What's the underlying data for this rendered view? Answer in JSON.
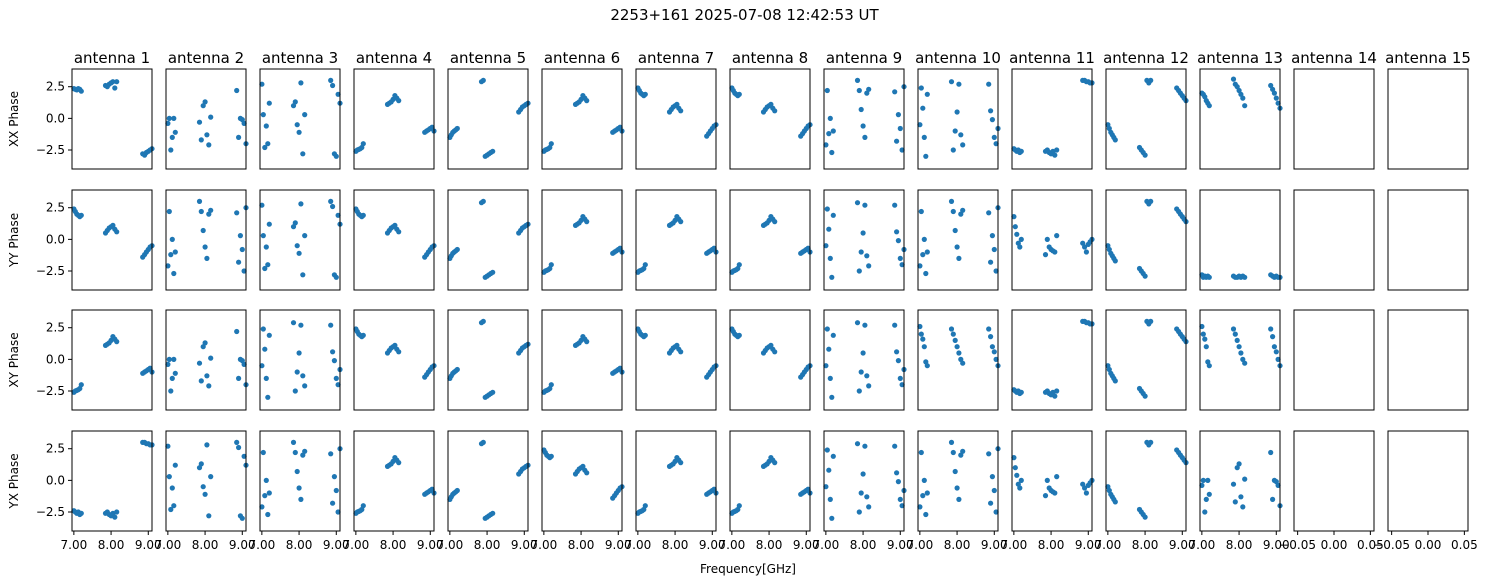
{
  "figure": {
    "suptitle": "2253+161 2025-07-08 12:42:53 UT",
    "xlabel": "Frequency[GHz]"
  },
  "chart_data": {
    "type": "scatter",
    "title": "2253+161 2025-07-08 12:42:53 UT",
    "xlabel": "Frequency[GHz]",
    "marker_color": "#1f77b4",
    "rows": [
      "XX Phase",
      "YY Phase",
      "XY Phase",
      "YX Phase"
    ],
    "columns": [
      "antenna 1",
      "antenna 2",
      "antenna 3",
      "antenna 4",
      "antenna 5",
      "antenna 6",
      "antenna 7",
      "antenna 8",
      "antenna 9",
      "antenna 10",
      "antenna 11",
      "antenna 12",
      "antenna 13",
      "antenna 14",
      "antenna 15"
    ],
    "xlim": [
      6.95,
      9.1
    ],
    "ylim": [
      -4.0,
      3.9
    ],
    "xticks": [
      7.0,
      8.0,
      9.0
    ],
    "xtick_labels": [
      "7.00",
      "8.00",
      "9.00"
    ],
    "yticks": [
      2.5,
      0.0,
      -2.5
    ],
    "ytick_labels": [
      "2.5",
      "0.0",
      "−2.5"
    ],
    "empty_xlim": [
      -0.055,
      0.055
    ],
    "empty_xticks": [
      -0.05,
      0.0,
      0.05
    ],
    "empty_xtick_labels": [
      "−0.05",
      "0.00",
      "0.05"
    ],
    "x_groups": [
      [
        7.0,
        7.04,
        7.08,
        7.12,
        7.16,
        7.2
      ],
      [
        7.85,
        7.9,
        7.95,
        8.0,
        8.05,
        8.1,
        8.15
      ],
      [
        8.85,
        8.9,
        8.95,
        9.0,
        9.05,
        9.1
      ]
    ],
    "patterns": {
      "wrap_line": [
        [
          2.35,
          2.3,
          2.25,
          2.35,
          2.3,
          2.15
        ],
        [
          2.6,
          2.5,
          2.7,
          2.8,
          2.9,
          2.4,
          2.9
        ],
        [
          -2.8,
          -2.9,
          -2.7,
          -2.6,
          -2.5,
          -2.4
        ]
      ],
      "linear_up": [
        [
          -2.6,
          -2.5,
          -2.45,
          -2.4,
          -2.3,
          -2.0
        ],
        [
          1.1,
          1.2,
          1.3,
          1.5,
          1.8,
          1.6,
          1.4
        ],
        [
          -1.1,
          -1.0,
          -0.9,
          -0.8,
          -0.7,
          -1.0
        ]
      ],
      "linear_up_b": [
        [
          -1.5,
          -1.3,
          -1.1,
          -1.0,
          -0.9,
          -0.8
        ],
        [
          2.9,
          3.0,
          -3.0,
          -2.9,
          -2.8,
          -2.7,
          -2.6
        ],
        [
          0.5,
          0.7,
          0.9,
          1.0,
          1.1,
          1.2
        ]
      ],
      "linear_down": [
        [
          2.4,
          2.2,
          2.0,
          1.9,
          1.8,
          1.9
        ],
        [
          0.5,
          0.7,
          0.9,
          1.0,
          1.1,
          0.8,
          0.6
        ],
        [
          -1.4,
          -1.2,
          -1.0,
          -0.8,
          -0.6,
          -0.5
        ]
      ],
      "flat_then_jump": [
        [
          -2.4,
          -2.5,
          -2.6,
          -2.5,
          -2.7,
          -2.6
        ],
        [
          -2.6,
          -2.5,
          -2.7,
          -2.8,
          -2.6,
          -2.9,
          -2.5
        ],
        [
          3.0,
          3.0,
          2.9,
          2.9,
          2.8,
          2.8
        ]
      ],
      "slope_down": [
        [
          -0.5,
          -0.8,
          -1.1,
          -1.3,
          -1.5,
          -1.7
        ],
        [
          -2.3,
          -2.5,
          -2.7,
          -2.9,
          3.0,
          2.8,
          3.0
        ],
        [
          2.4,
          2.2,
          2.0,
          1.8,
          1.6,
          1.4
        ]
      ],
      "steep_down": [
        [
          2.0,
          1.9,
          1.7,
          1.4,
          1.2,
          1.0
        ],
        [
          3.1,
          2.7,
          2.5,
          2.2,
          1.9,
          1.6,
          1.0
        ],
        [
          2.6,
          2.3,
          2.0,
          1.6,
          1.2,
          0.8
        ]
      ],
      "scatter_a": [
        [
          -0.4,
          0.0,
          -2.5,
          -1.5,
          0.0,
          -1.1
        ],
        [
          -0.3,
          -1.7,
          1.0,
          1.3,
          -1.3,
          -2.1,
          0.1
        ],
        [
          2.2,
          -1.5,
          0.0,
          -0.1,
          -0.4,
          -2.0
        ]
      ],
      "scatter_b": [
        [
          2.7,
          0.3,
          -2.3,
          -0.6,
          -2.0,
          1.2
        ],
        [
          1.0,
          1.3,
          -0.5,
          -1.1,
          2.8,
          -2.8,
          0.3
        ],
        [
          3.0,
          2.6,
          -2.8,
          -3.0,
          1.9,
          1.2
        ]
      ],
      "scatter_c": [
        [
          -2.1,
          2.2,
          -1.2,
          0.0,
          -2.7,
          -1.0
        ],
        [
          3.0,
          2.2,
          0.7,
          -0.6,
          -1.5,
          2.0,
          2.3
        ],
        [
          2.1,
          -1.8,
          0.3,
          -0.8,
          -2.5,
          2.5
        ]
      ],
      "scatter_d": [
        [
          -0.5,
          2.4,
          0.8,
          -1.5,
          -3.0,
          1.9
        ],
        [
          2.9,
          -2.5,
          -1.0,
          0.5,
          2.7,
          -1.3,
          -2.1
        ],
        [
          2.7,
          0.6,
          -0.1,
          -1.5,
          -2.0,
          -0.8
        ]
      ],
      "cluster_low": [
        [
          -2.8,
          -3.0,
          -2.9,
          -3.0,
          -2.9,
          -3.0
        ],
        [
          -2.9,
          -3.0,
          -3.0,
          -2.9,
          -3.0,
          -2.9,
          -3.0
        ],
        [
          -2.8,
          -2.9,
          -3.0,
          -2.9,
          -3.0,
          -3.0
        ]
      ],
      "scatter_e": [
        [
          2.6,
          2.0,
          1.6,
          1.0,
          -0.2,
          -0.5
        ],
        [
          2.4,
          2.0,
          1.5,
          1.0,
          0.5,
          0.0,
          -0.3
        ],
        [
          2.4,
          1.8,
          1.0,
          0.6,
          0.0,
          -0.5
        ]
      ],
      "scatter_f": [
        [
          1.8,
          1.0,
          0.4,
          -0.3,
          -0.6,
          0.0
        ],
        [
          -1.2,
          0.0,
          -0.6,
          -0.8,
          -0.9,
          -1.0,
          0.3
        ],
        [
          -0.3,
          -0.6,
          -1.0,
          -0.4,
          -0.2,
          0.0
        ]
      ]
    },
    "grid": [
      [
        "wrap_line",
        "scatter_a",
        "scatter_b",
        "linear_up",
        "linear_up_b",
        "linear_up",
        "linear_down",
        "linear_down",
        "scatter_c",
        "scatter_d",
        "flat_then_jump",
        "slope_down",
        "steep_down",
        null,
        null
      ],
      [
        "linear_down",
        "scatter_c",
        "scatter_b",
        "linear_down",
        "linear_up_b",
        "linear_up",
        "linear_up",
        "linear_up",
        "scatter_d",
        "scatter_c",
        "scatter_f",
        "slope_down",
        "cluster_low",
        null,
        null
      ],
      [
        "linear_up",
        "scatter_a",
        "scatter_d",
        "linear_down",
        "linear_up_b",
        "linear_up",
        "linear_down",
        "linear_down",
        "scatter_d",
        "scatter_e",
        "flat_then_jump",
        "slope_down",
        "scatter_e",
        null,
        null
      ],
      [
        "flat_then_jump",
        "scatter_b",
        "scatter_c",
        "linear_up",
        "linear_up_b",
        "linear_down",
        "linear_up",
        "linear_up",
        "scatter_d",
        "scatter_c",
        "scatter_f",
        "slope_down",
        "scatter_a",
        null,
        null
      ]
    ]
  }
}
